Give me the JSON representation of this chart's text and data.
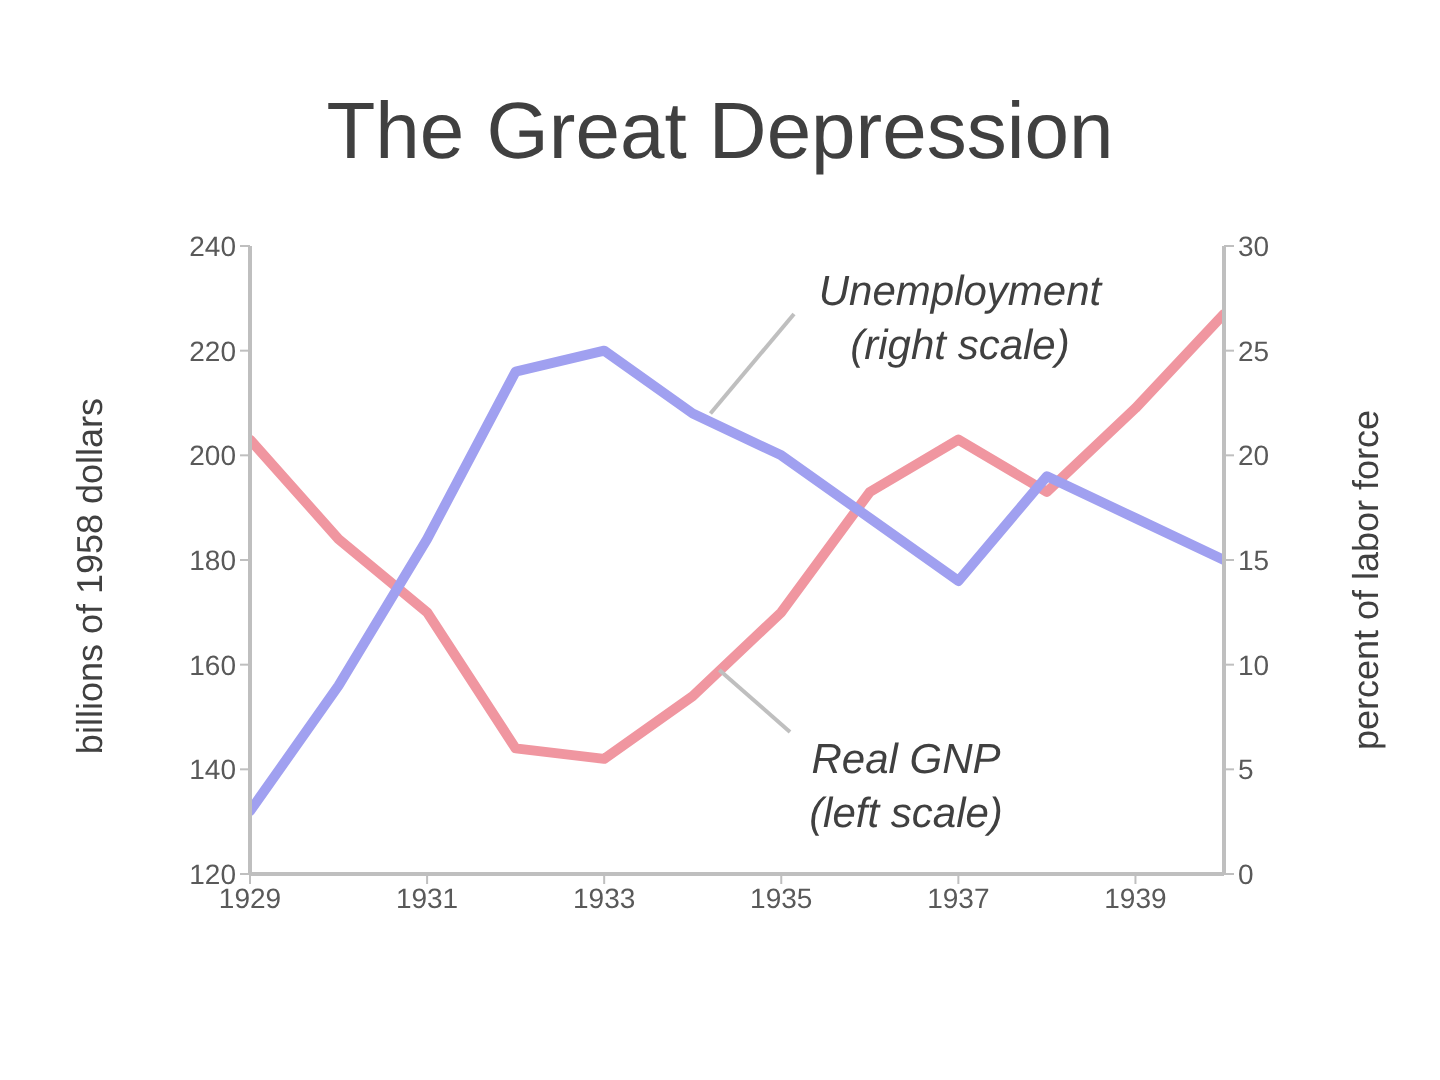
{
  "chart_data": {
    "type": "line",
    "title": "The Great Depression",
    "ylabel": "billions of 1958 dollars",
    "y2label": "percent of labor force",
    "x": [
      1929,
      1930,
      1931,
      1932,
      1933,
      1934,
      1935,
      1936,
      1937,
      1938,
      1939,
      1940
    ],
    "series": [
      {
        "color": "#f096a0",
        "values": [
          203,
          184,
          170,
          144,
          142,
          154,
          170,
          193,
          203,
          193,
          209,
          227
        ]
      },
      {
        "color": "#a0a0f0",
        "axis": "y2",
        "values": [
          3,
          9,
          16,
          24,
          25,
          22,
          20,
          17,
          14,
          19,
          17,
          15
        ]
      }
    ],
    "annotations": [
      {
        "text": "Real GNP\n(left scale)",
        "x": 1934.3,
        "y": 159
      },
      {
        "text": "Unemployment\n(right scale)",
        "x": 1934.2,
        "y": 208
      }
    ],
    "xlim": [
      1929,
      1940
    ],
    "xticks": [
      1929,
      1931,
      1933,
      1935,
      1937,
      1939
    ],
    "ylim": [
      120,
      240
    ],
    "yticks": [
      120,
      140,
      160,
      180,
      200,
      220,
      240
    ],
    "y2lim": [
      0,
      30
    ],
    "y2ticks": [
      0,
      5,
      10,
      15,
      20,
      25,
      30
    ]
  }
}
